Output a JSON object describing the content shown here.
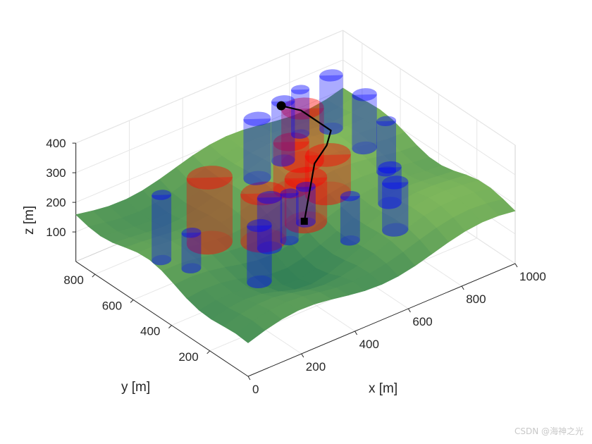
{
  "chart_data": {
    "type": "surface3d",
    "title": "",
    "xlabel": "x [m]",
    "ylabel": "y [m]",
    "zlabel": "z [m]",
    "xlim": [
      0,
      1000
    ],
    "ylim": [
      0,
      900
    ],
    "zlim": [
      0,
      400
    ],
    "x_ticks": [
      "0",
      "200",
      "400",
      "600",
      "800",
      "1000"
    ],
    "x_tick_values": [
      0,
      200,
      400,
      600,
      800,
      1000
    ],
    "y_ticks": [
      "200",
      "400",
      "600",
      "800"
    ],
    "y_tick_values": [
      200,
      400,
      600,
      800
    ],
    "z_ticks": [
      "100",
      "200",
      "300",
      "400"
    ],
    "z_tick_values": [
      100,
      200,
      300,
      400
    ],
    "grid": true,
    "colors": {
      "terrain_low": "#1f6f55",
      "terrain_mid": "#4ea04a",
      "terrain_high": "#9fd35a",
      "blue_obstacle": "#0000ff",
      "red_obstacle": "#ff0000",
      "path": "#000000"
    },
    "blue_cylinders": [
      {
        "x": 120,
        "y": 620,
        "r": 30,
        "z0": 80,
        "z1": 300
      },
      {
        "x": 160,
        "y": 520,
        "r": 30,
        "z0": 80,
        "z1": 200
      },
      {
        "x": 300,
        "y": 360,
        "r": 38,
        "z0": 50,
        "z1": 240
      },
      {
        "x": 410,
        "y": 460,
        "r": 38,
        "z0": 80,
        "z1": 250
      },
      {
        "x": 470,
        "y": 440,
        "r": 28,
        "z0": 90,
        "z1": 250
      },
      {
        "x": 560,
        "y": 480,
        "r": 30,
        "z0": 100,
        "z1": 220
      },
      {
        "x": 640,
        "y": 360,
        "r": 30,
        "z0": 60,
        "z1": 210
      },
      {
        "x": 780,
        "y": 320,
        "r": 40,
        "z0": 60,
        "z1": 220
      },
      {
        "x": 860,
        "y": 460,
        "r": 36,
        "z0": 60,
        "z1": 180
      },
      {
        "x": 940,
        "y": 590,
        "r": 30,
        "z0": 80,
        "z1": 250
      },
      {
        "x": 930,
        "y": 690,
        "r": 38,
        "z0": 120,
        "z1": 300
      },
      {
        "x": 790,
        "y": 830,
        "r": 28,
        "z0": 160,
        "z1": 310
      },
      {
        "x": 920,
        "y": 850,
        "r": 36,
        "z0": 120,
        "z1": 300
      },
      {
        "x": 550,
        "y": 720,
        "r": 42,
        "z0": 150,
        "z1": 350
      },
      {
        "x": 690,
        "y": 780,
        "r": 36,
        "z0": 130,
        "z1": 330
      }
    ],
    "red_cylinders": [
      {
        "x": 300,
        "y": 620,
        "r": 70,
        "z0": 70,
        "z1": 290
      },
      {
        "x": 430,
        "y": 520,
        "r": 70,
        "z0": 70,
        "z1": 230
      },
      {
        "x": 560,
        "y": 480,
        "r": 65,
        "z0": 100,
        "z1": 250
      },
      {
        "x": 700,
        "y": 560,
        "r": 70,
        "z0": 110,
        "z1": 240
      },
      {
        "x": 720,
        "y": 720,
        "r": 65,
        "z0": 140,
        "z1": 320
      },
      {
        "x": 620,
        "y": 640,
        "r": 55,
        "z0": 120,
        "z1": 280
      }
    ],
    "path": {
      "start": {
        "x": 540,
        "y": 460,
        "z": 120
      },
      "waypoints": [
        {
          "x": 540,
          "y": 460,
          "z": 120
        },
        {
          "x": 650,
          "y": 560,
          "z": 230
        },
        {
          "x": 710,
          "y": 580,
          "z": 260
        },
        {
          "x": 740,
          "y": 600,
          "z": 290
        },
        {
          "x": 700,
          "y": 700,
          "z": 330
        },
        {
          "x": 640,
          "y": 720,
          "z": 360
        }
      ],
      "end": {
        "x": 640,
        "y": 720,
        "z": 360
      }
    }
  },
  "watermark": "CSDN @海神之光"
}
